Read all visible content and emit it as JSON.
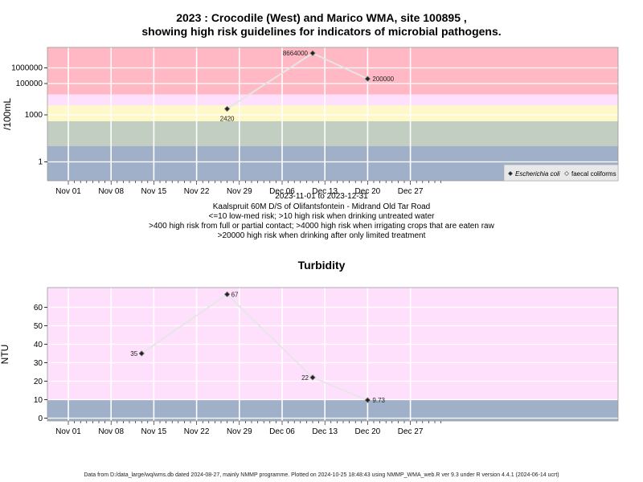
{
  "chart_data": [
    {
      "type": "line",
      "title_line1": "2023 : Crocodile (West) and Marico WMA, site 100895 ,",
      "title_line2": "showing high risk guidelines for indicators of microbial pathogens.",
      "ylabel": "/100mL",
      "y_scale": "log",
      "y_ticks": [
        {
          "value": 1,
          "label": "1"
        },
        {
          "value": 1000,
          "label": "1000"
        },
        {
          "value": 100000,
          "label": "100000"
        },
        {
          "value": 1000000,
          "label": "1000000"
        }
      ],
      "x_ticks": [
        "Nov 01",
        "Nov 08",
        "Nov 15",
        "Nov 22",
        "Nov 29",
        "Dec 06",
        "Dec 13",
        "Dec 20",
        "Dec 27"
      ],
      "subtitle_lines": [
        "2023-11-01 to 2023-12-31",
        "Kaalspruit 60M D/S of Olifantsfontein - Midrand Old Tar Road",
        "<=10 low-med risk; >10 high risk when drinking untreated water",
        ">400 high risk from full or partial contact; >4000 high risk when irrigating crops that are eaten raw",
        ">20000 high risk when drinking after only limited treatment"
      ],
      "bands": [
        {
          "from": 0,
          "to": 10,
          "color": "#a0b0c8"
        },
        {
          "from": 10,
          "to": 400,
          "color": "#c2cec2"
        },
        {
          "from": 400,
          "to": 4000,
          "color": "#fff8c8"
        },
        {
          "from": 4000,
          "to": 20000,
          "color": "#ffe0fc"
        },
        {
          "from": 20000,
          "to": "max",
          "color": "#ffb8c4"
        }
      ],
      "series": [
        {
          "name": "Escherichia coli",
          "marker": "filled-diamond",
          "points": [
            {
              "date": "2023-11-27",
              "value": 2420,
              "label": "2420"
            },
            {
              "date": "2023-12-11",
              "value": 8664000,
              "label": "8664000"
            },
            {
              "date": "2023-12-20",
              "value": 200000,
              "label": "200000"
            }
          ]
        }
      ],
      "legend": {
        "placement": "bottom-right",
        "entries": [
          {
            "label": "Escherichia coli",
            "marker": "filled-diamond",
            "italic": true
          },
          {
            "label": "faecal coliforms",
            "marker": "open-diamond",
            "italic": false
          }
        ]
      }
    },
    {
      "type": "line",
      "title": "Turbidity",
      "ylabel": "NTU",
      "y_ticks": [
        0,
        10,
        20,
        30,
        40,
        50,
        60
      ],
      "x_ticks": [
        "Nov 01",
        "Nov 08",
        "Nov 15",
        "Nov 22",
        "Nov 29",
        "Dec 06",
        "Dec 13",
        "Dec 20",
        "Dec 27"
      ],
      "bands": [
        {
          "from": 0,
          "to": 10,
          "color": "#a0b0c8"
        },
        {
          "from": 10,
          "to": "max",
          "color": "#ffe0fc"
        }
      ],
      "series": [
        {
          "marker": "filled-diamond",
          "points": [
            {
              "date": "2023-11-13",
              "value": 35,
              "label": "35"
            },
            {
              "date": "2023-11-27",
              "value": 67,
              "label": "67"
            },
            {
              "date": "2023-12-11",
              "value": 22,
              "label": "22"
            },
            {
              "date": "2023-12-20",
              "value": 9.73,
              "label": "9.73"
            }
          ]
        }
      ]
    }
  ],
  "footer": "Data from D:/data_large/wq/wms.db dated 2024-08-27, mainly NMMP programme. Plotted on 2024-10-25 18:48:43 using NMMP_WMA_web.R ver 9.3 under R version 4.4.1 (2024-06-14 ucrt)"
}
